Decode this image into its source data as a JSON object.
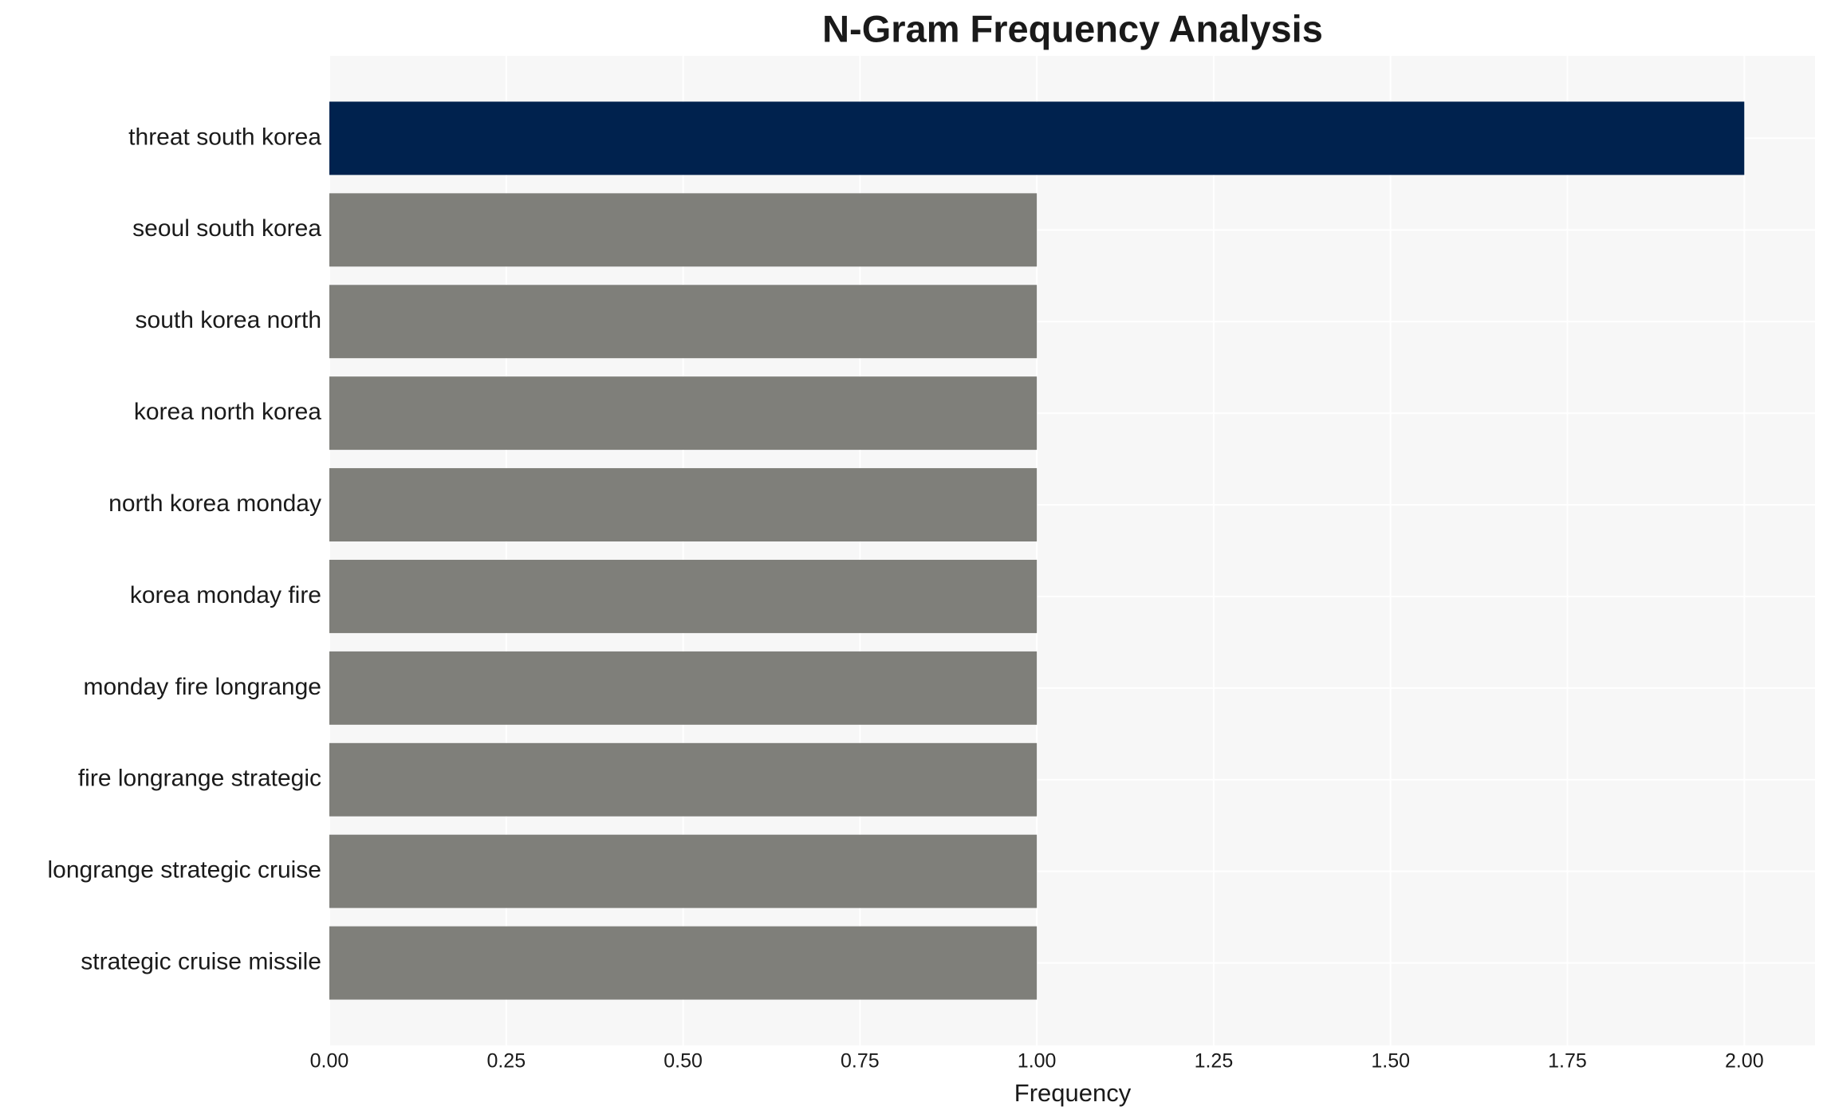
{
  "chart_data": {
    "type": "barh",
    "title": "N-Gram Frequency Analysis",
    "x_label": "Frequency",
    "categories": [
      "threat south korea",
      "seoul south korea",
      "south korea north",
      "korea north korea",
      "north korea monday",
      "korea monday fire",
      "monday fire longrange",
      "fire longrange strategic",
      "longrange strategic cruise",
      "strategic cruise missile"
    ],
    "values": [
      2,
      1,
      1,
      1,
      1,
      1,
      1,
      1,
      1,
      1
    ],
    "colors": [
      "#00224e",
      "#7f7f7a",
      "#7f7f7a",
      "#7f7f7a",
      "#7f7f7a",
      "#7f7f7a",
      "#7f7f7a",
      "#7f7f7a",
      "#7f7f7a",
      "#7f7f7a"
    ],
    "xlim": [
      0,
      2.1
    ],
    "xticks": [
      {
        "value": 0,
        "label": "0.00"
      },
      {
        "value": 0.25,
        "label": "0.25"
      },
      {
        "value": 0.5,
        "label": "0.50"
      },
      {
        "value": 0.75,
        "label": "0.75"
      },
      {
        "value": 1,
        "label": "1.00"
      },
      {
        "value": 1.25,
        "label": "1.25"
      },
      {
        "value": 1.5,
        "label": "1.50"
      },
      {
        "value": 1.75,
        "label": "1.75"
      },
      {
        "value": 2,
        "label": "2.00"
      }
    ],
    "grid": true
  }
}
